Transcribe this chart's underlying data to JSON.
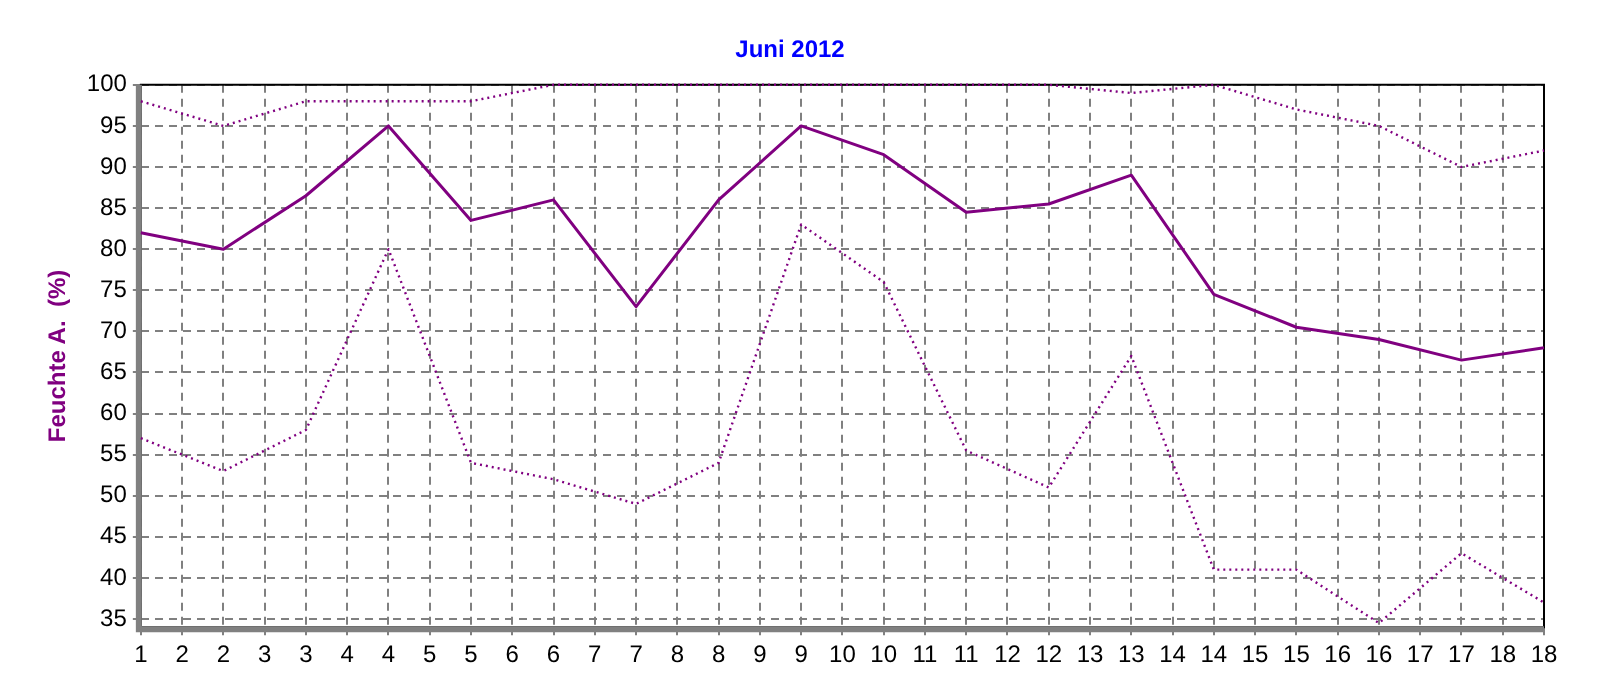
{
  "chart_data": {
    "type": "line",
    "title": "Juni 2012",
    "ylabel": "Feuchte A.  (%)",
    "x": [
      1,
      2,
      3,
      4,
      5,
      6,
      7,
      8,
      9,
      10,
      11,
      12,
      13,
      14,
      15,
      16,
      17,
      18
    ],
    "xlim": [
      1,
      18
    ],
    "xticks": [
      1,
      {
        "value": 1.5,
        "label": "2"
      },
      2,
      {
        "value": 2.5,
        "label": "3"
      },
      3,
      {
        "value": 3.5,
        "label": "4"
      },
      4,
      {
        "value": 4.5,
        "label": "5"
      },
      5,
      {
        "value": 5.5,
        "label": "6"
      },
      6,
      {
        "value": 6.5,
        "label": "7"
      },
      7,
      {
        "value": 7.5,
        "label": "8"
      },
      8,
      {
        "value": 8.5,
        "label": "9"
      },
      9,
      {
        "value": 9.5,
        "label": "10"
      },
      10,
      {
        "value": 10.5,
        "label": "11"
      },
      11,
      {
        "value": 11.5,
        "label": "12"
      },
      12,
      {
        "value": 12.5,
        "label": "13"
      },
      13,
      {
        "value": 13.5,
        "label": "14"
      },
      14,
      {
        "value": 14.5,
        "label": "15"
      },
      15,
      {
        "value": 15.5,
        "label": "16"
      },
      16,
      {
        "value": 16.5,
        "label": "17"
      },
      17,
      {
        "value": 17.5,
        "label": "18"
      },
      18
    ],
    "ylim": [
      34,
      100
    ],
    "yticks": [
      35,
      40,
      45,
      50,
      55,
      60,
      65,
      70,
      75,
      80,
      85,
      90,
      95,
      100
    ],
    "grid": true,
    "legend": false,
    "marker": "none",
    "series": [
      {
        "color": "#800080",
        "line_style": "dotted",
        "values": [
          98,
          95,
          98,
          98,
          98,
          100,
          100,
          100,
          100,
          100,
          100,
          100,
          99,
          100,
          97,
          95,
          90,
          92
        ]
      },
      {
        "color": "#800080",
        "line_style": "solid",
        "values": [
          82,
          80,
          86.5,
          95,
          83.5,
          86,
          73,
          86,
          95,
          91.5,
          84.5,
          85.5,
          89,
          74.5,
          70.5,
          69,
          66.5,
          68
        ]
      },
      {
        "color": "#800080",
        "line_style": "dotted",
        "values": [
          57,
          53,
          58,
          80,
          54,
          52,
          49,
          54,
          83,
          76,
          55.5,
          51,
          67,
          41,
          41,
          34.5,
          43,
          37
        ]
      }
    ]
  }
}
